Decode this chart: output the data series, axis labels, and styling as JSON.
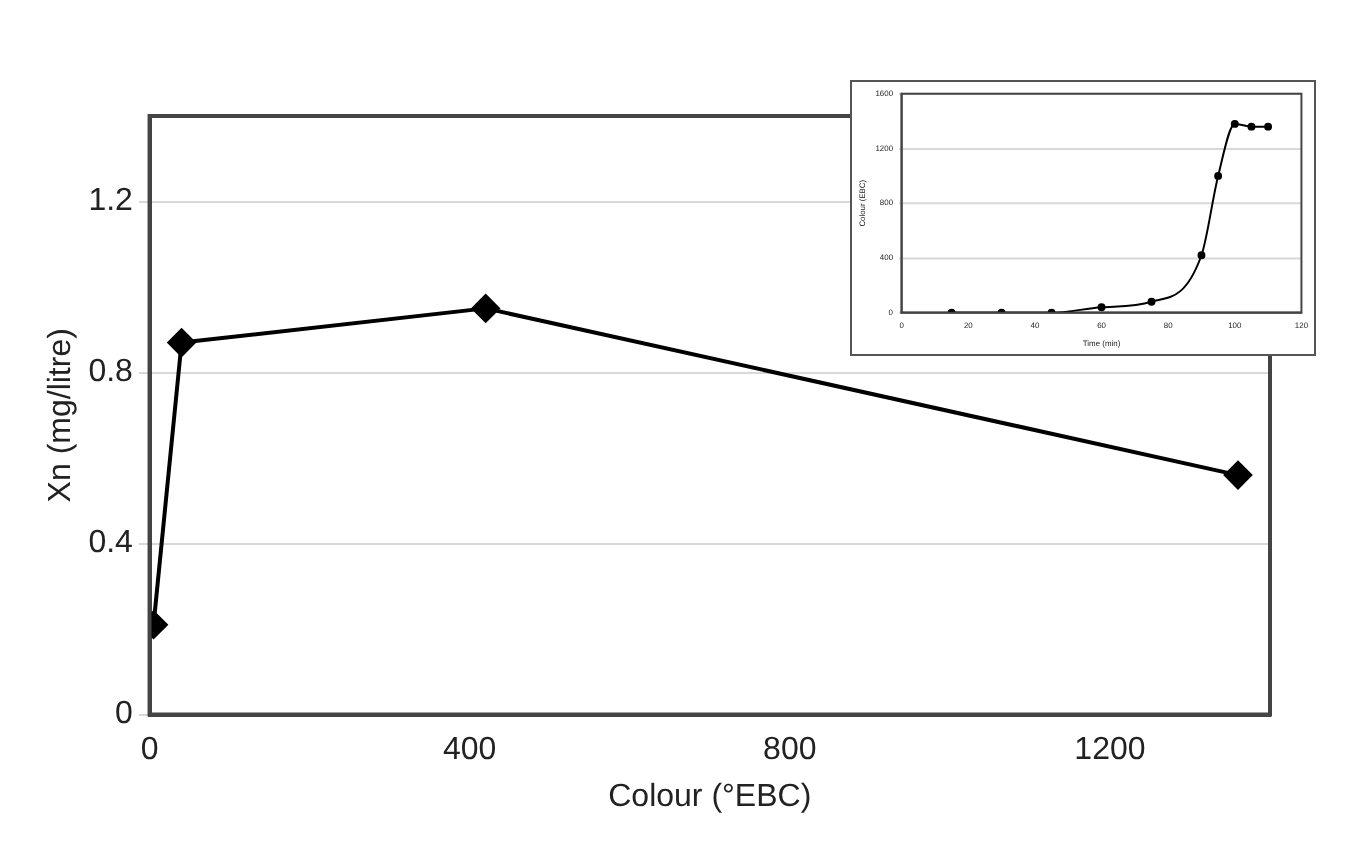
{
  "chart_data": [
    {
      "type": "line",
      "xlabel": "Colour (°EBC)",
      "ylabel": "Xn (mg/litre)",
      "x": [
        5,
        40,
        420,
        1360
      ],
      "series": [
        {
          "color": "#000000",
          "values": [
            0.21,
            0.87,
            0.95,
            0.56
          ]
        }
      ],
      "xlim": [
        0,
        1400
      ],
      "xticks": [
        0,
        400,
        800,
        1200
      ],
      "ylim": [
        0,
        1.4
      ],
      "yticks": [
        0,
        0.4,
        0.8,
        1.2
      ],
      "grid": "y",
      "marker": "diamond",
      "line_style": "solid"
    },
    {
      "type": "line",
      "xlabel": "Time (min)",
      "ylabel": "Colour (EBC)",
      "x": [
        15,
        30,
        45,
        60,
        75,
        90,
        95,
        100,
        105,
        110
      ],
      "series": [
        {
          "color": "#000000",
          "values": [
            0,
            0,
            0,
            40,
            80,
            420,
            1000,
            1380,
            1360,
            1360
          ]
        }
      ],
      "xlim": [
        0,
        120
      ],
      "xticks": [
        0,
        20,
        40,
        60,
        80,
        100,
        120
      ],
      "ylim": [
        0,
        1600
      ],
      "yticks": [
        0,
        400,
        800,
        1200,
        1600
      ],
      "grid": "y",
      "marker": "circle",
      "line_style": "solid"
    }
  ]
}
